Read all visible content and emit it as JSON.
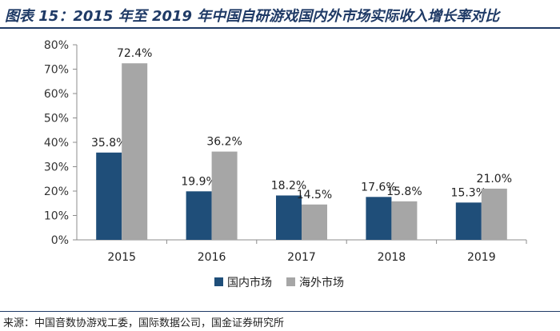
{
  "header": {
    "title": "图表 15：2015 年至 2019 年中国自研游戏国内外市场实际收入增长率对比"
  },
  "footer": {
    "source": "来源：中国音数协游戏工委，国际数据公司，国金证券研究所"
  },
  "chart_data": {
    "type": "bar",
    "title": "",
    "xlabel": "",
    "ylabel": "",
    "categories": [
      "2015",
      "2016",
      "2017",
      "2018",
      "2019"
    ],
    "ylim": [
      0,
      80
    ],
    "yticks": [
      0,
      10,
      20,
      30,
      40,
      50,
      60,
      70,
      80
    ],
    "ytick_labels": [
      "0%",
      "10%",
      "20%",
      "30%",
      "40%",
      "50%",
      "60%",
      "70%",
      "80%"
    ],
    "grid": false,
    "legend_position": "bottom-center",
    "series": [
      {
        "name": "国内市场",
        "color": "#1f4e79",
        "values": [
          35.8,
          19.9,
          18.2,
          17.6,
          15.3
        ],
        "labels": [
          "35.8%",
          "19.9%",
          "18.2%",
          "17.6%",
          "15.3%"
        ]
      },
      {
        "name": "海外市场",
        "color": "#a6a6a6",
        "values": [
          72.4,
          36.2,
          14.5,
          15.8,
          21.0
        ],
        "labels": [
          "72.4%",
          "36.2%",
          "14.5%",
          "15.8%",
          "21.0%"
        ]
      }
    ]
  }
}
